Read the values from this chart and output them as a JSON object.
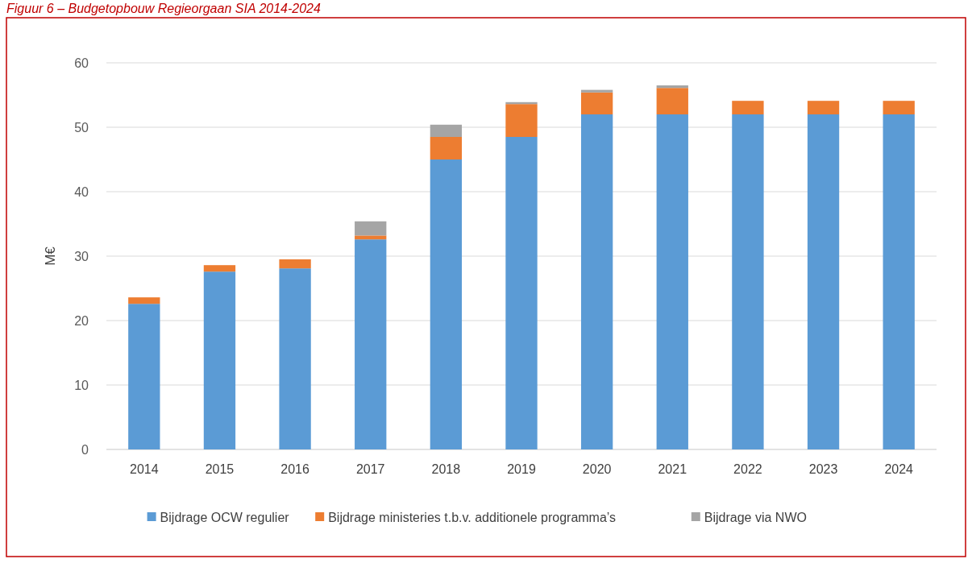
{
  "chart_data": {
    "type": "bar",
    "title": "Figuur 6 – Budgetopbouw Regieorgaan SIA 2014-2024",
    "ylabel": "M€",
    "categories": [
      "2014",
      "2015",
      "2016",
      "2017",
      "2018",
      "2019",
      "2020",
      "2021",
      "2022",
      "2023",
      "2024"
    ],
    "stacked": true,
    "series": [
      {
        "name": "Bijdrage OCW regulier",
        "color": "#5b9bd5",
        "values": [
          22.6,
          27.6,
          28.1,
          32.6,
          45,
          48.5,
          52,
          52,
          52,
          52,
          52
        ]
      },
      {
        "name": "Bijdrage ministeries t.b.v. additionele programma’s",
        "color": "#ed7d31",
        "values": [
          1.0,
          1.0,
          1.4,
          0.6,
          3.5,
          5.1,
          3.4,
          4.1,
          2.1,
          2.1,
          2.1
        ]
      },
      {
        "name": "Bijdrage via NWO",
        "color": "#a5a5a5",
        "values": [
          0,
          0,
          0,
          2.2,
          1.9,
          0.3,
          0.4,
          0.4,
          0,
          0,
          0
        ]
      }
    ],
    "ylim": [
      0,
      60
    ],
    "yticks": [
      0,
      10,
      20,
      30,
      40,
      50,
      60
    ],
    "grid": "y",
    "legend": "bottom"
  }
}
